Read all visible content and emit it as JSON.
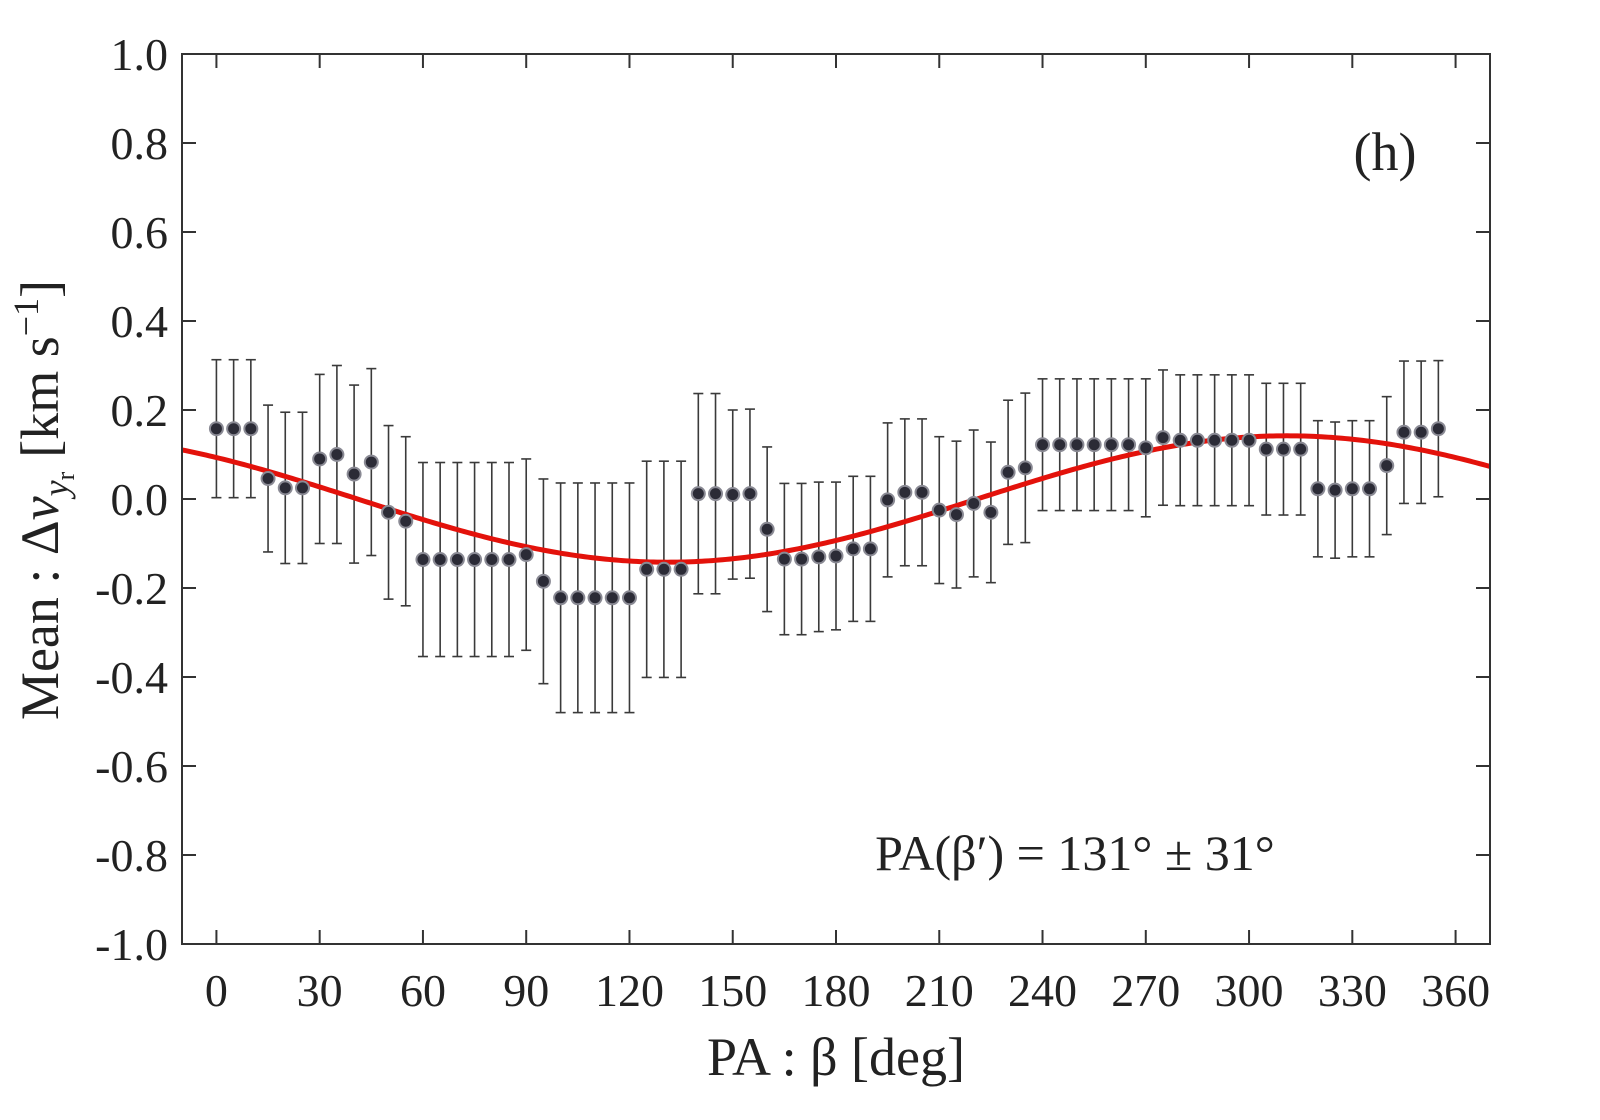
{
  "chart_data": {
    "type": "scatter",
    "panel_label": "(h)",
    "xlabel": "PA : β [deg]",
    "ylabel_main": "Mean : Δ",
    "ylabel_var": "v",
    "ylabel_sub1": "y",
    "ylabel_sub2": "r",
    "ylabel_units": "[km s",
    "ylabel_exp": "−1",
    "ylabel_close": "]",
    "annotation": "PA(β′) = 131° ± 31°",
    "xlim": [
      -10,
      370
    ],
    "ylim": [
      -1.0,
      1.0
    ],
    "xticks": [
      0,
      30,
      60,
      90,
      120,
      150,
      180,
      210,
      240,
      270,
      300,
      330,
      360
    ],
    "xtick_labels": [
      "0",
      "30",
      "60",
      "90",
      "120",
      "150",
      "180",
      "210",
      "240",
      "270",
      "300",
      "330",
      "360"
    ],
    "yticks": [
      1.0,
      0.8,
      0.6,
      0.4,
      0.2,
      0.0,
      -0.2,
      -0.4,
      -0.6,
      -0.8,
      -1.0
    ],
    "ytick_labels": [
      "1.0",
      "0.8",
      "0.6",
      "0.4",
      "0.2",
      "0.0",
      "-0.2",
      "-0.4",
      "-0.6",
      "-0.8",
      "-1.0"
    ],
    "grid": false,
    "points": {
      "x": [
        0,
        5,
        10,
        15,
        20,
        25,
        30,
        35,
        40,
        45,
        50,
        55,
        60,
        65,
        70,
        75,
        80,
        85,
        90,
        95,
        100,
        105,
        110,
        115,
        120,
        125,
        130,
        135,
        140,
        145,
        150,
        155,
        160,
        165,
        170,
        175,
        180,
        185,
        190,
        195,
        200,
        205,
        210,
        215,
        220,
        225,
        230,
        235,
        240,
        245,
        250,
        255,
        260,
        265,
        270,
        275,
        280,
        285,
        290,
        295,
        300,
        305,
        310,
        315,
        320,
        325,
        330,
        335,
        340,
        345,
        350,
        355
      ],
      "y": [
        0.158,
        0.158,
        0.158,
        0.046,
        0.025,
        0.025,
        0.09,
        0.1,
        0.056,
        0.083,
        -0.03,
        -0.05,
        -0.136,
        -0.136,
        -0.136,
        -0.136,
        -0.136,
        -0.136,
        -0.125,
        -0.185,
        -0.222,
        -0.222,
        -0.222,
        -0.222,
        -0.222,
        -0.158,
        -0.158,
        -0.158,
        0.012,
        0.012,
        0.01,
        0.012,
        -0.068,
        -0.135,
        -0.135,
        -0.13,
        -0.128,
        -0.112,
        -0.112,
        -0.002,
        0.015,
        0.015,
        -0.025,
        -0.035,
        -0.01,
        -0.03,
        0.06,
        0.07,
        0.122,
        0.122,
        0.122,
        0.122,
        0.122,
        0.122,
        0.115,
        0.138,
        0.132,
        0.132,
        0.132,
        0.132,
        0.132,
        0.112,
        0.112,
        0.112,
        0.023,
        0.02,
        0.023,
        0.023,
        0.075,
        0.15,
        0.15,
        0.158
      ],
      "err": [
        0.155,
        0.155,
        0.155,
        0.165,
        0.17,
        0.17,
        0.19,
        0.2,
        0.2,
        0.21,
        0.195,
        0.19,
        0.218,
        0.218,
        0.218,
        0.218,
        0.218,
        0.218,
        0.215,
        0.23,
        0.258,
        0.258,
        0.258,
        0.258,
        0.258,
        0.243,
        0.243,
        0.243,
        0.225,
        0.225,
        0.19,
        0.19,
        0.185,
        0.17,
        0.17,
        0.168,
        0.166,
        0.163,
        0.163,
        0.173,
        0.165,
        0.165,
        0.165,
        0.165,
        0.165,
        0.158,
        0.162,
        0.168,
        0.148,
        0.148,
        0.148,
        0.148,
        0.148,
        0.148,
        0.155,
        0.152,
        0.147,
        0.147,
        0.147,
        0.147,
        0.147,
        0.148,
        0.148,
        0.148,
        0.153,
        0.153,
        0.153,
        0.153,
        0.155,
        0.16,
        0.16,
        0.153
      ]
    },
    "fit": {
      "model": "A*sin(x+phi)",
      "amplitude": 0.142,
      "peak_deg": 311,
      "trough_deg": 131,
      "x_range": [
        -10,
        370
      ]
    },
    "colors": {
      "axis": "#333333",
      "marker_fill": "#2b2b36",
      "marker_edge": "#8a8a94",
      "errorbar": "#3a3a3a",
      "fit_line": "#e3120b"
    }
  }
}
